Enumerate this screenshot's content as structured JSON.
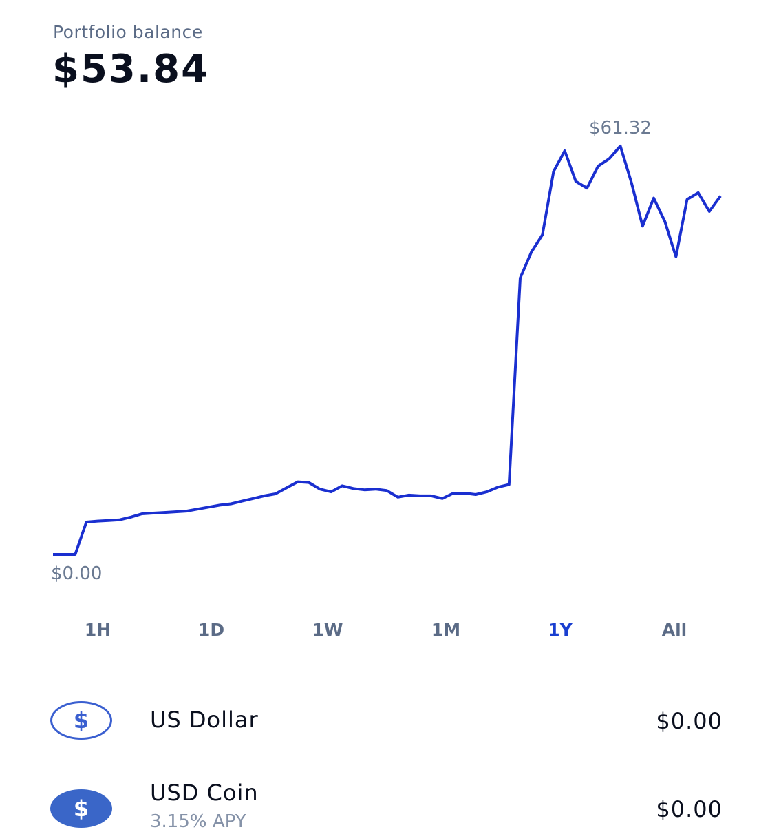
{
  "header": {
    "label": "Portfolio balance",
    "balance": "$53.84"
  },
  "chart_data": {
    "type": "line",
    "color": "#1a2fd0",
    "ylim": [
      0,
      61.32
    ],
    "annotations": [
      {
        "text": "$61.32",
        "value": 61.32
      },
      {
        "text": "$0.00",
        "value": 0
      }
    ],
    "values": [
      0,
      0,
      0,
      4.86,
      5.0,
      5.1,
      5.2,
      5.6,
      6.1,
      6.2,
      6.3,
      6.4,
      6.5,
      6.8,
      7.1,
      7.4,
      7.6,
      8.0,
      8.4,
      8.8,
      9.1,
      10.0,
      10.9,
      10.8,
      9.8,
      9.4,
      10.3,
      9.9,
      9.7,
      9.8,
      9.6,
      8.6,
      8.9,
      8.8,
      8.8,
      8.4,
      9.2,
      9.2,
      9.0,
      9.4,
      10.1,
      10.5,
      41.5,
      45.4,
      48.0,
      57.5,
      60.6,
      56.0,
      55.0,
      58.3,
      59.4,
      61.32,
      55.8,
      49.3,
      53.5,
      50.0,
      44.7,
      53.3,
      54.3,
      51.5,
      53.8
    ]
  },
  "tabs": {
    "items": [
      "1H",
      "1D",
      "1W",
      "1M",
      "1Y",
      "All"
    ],
    "selected": 4
  },
  "assets": [
    {
      "name": "US Dollar",
      "amount": "$0.00",
      "icon": "$"
    },
    {
      "name": "USD Coin",
      "subtitle": "3.15% APY",
      "amount": "$0.00",
      "icon": "$"
    }
  ]
}
